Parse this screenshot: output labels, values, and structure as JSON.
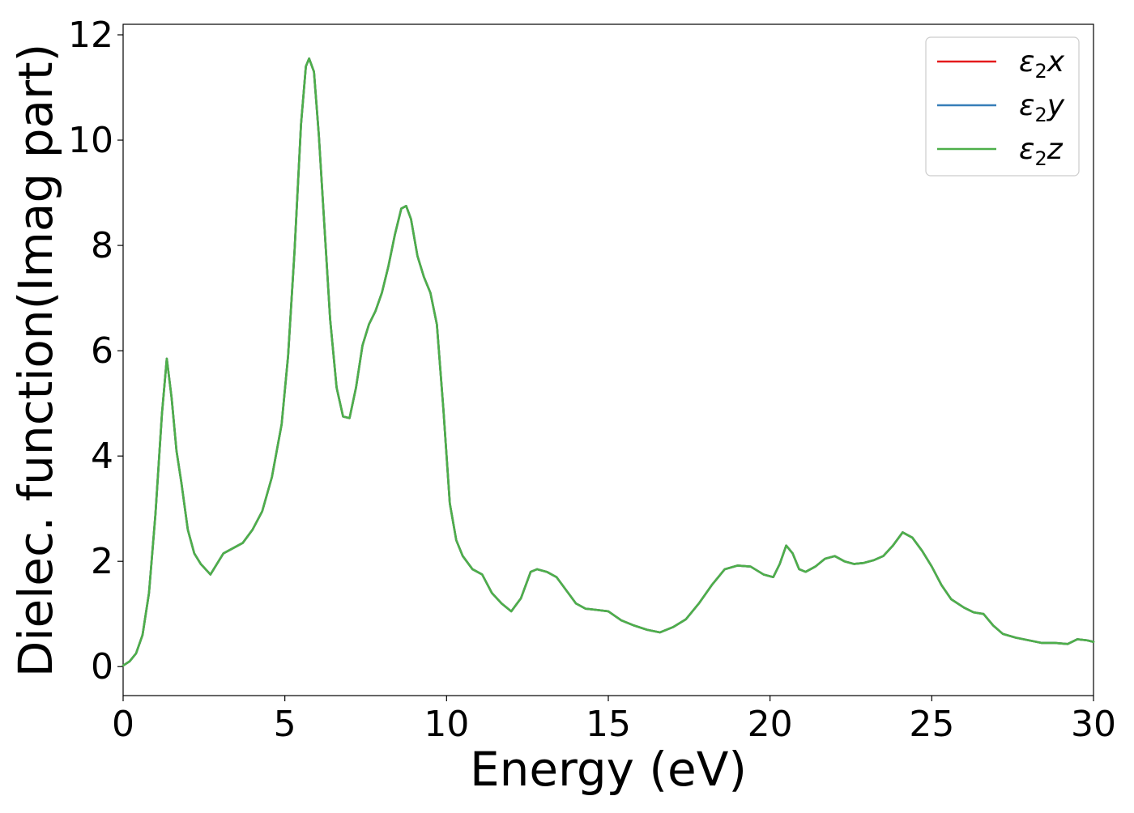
{
  "chart_data": {
    "type": "line",
    "title": "",
    "xlabel": "Energy (eV)",
    "ylabel": "Dielec. function(Imag part)",
    "xlim": [
      0,
      30
    ],
    "ylim": [
      -0.55,
      12.2
    ],
    "xticks": [
      0,
      5,
      10,
      15,
      20,
      25,
      30
    ],
    "yticks": [
      0,
      2,
      4,
      6,
      8,
      10,
      12
    ],
    "grid": false,
    "legend_position": "top-right",
    "x": [
      0,
      0.2,
      0.4,
      0.6,
      0.8,
      1.0,
      1.2,
      1.35,
      1.5,
      1.65,
      1.8,
      2.0,
      2.2,
      2.4,
      2.7,
      2.9,
      3.1,
      3.4,
      3.7,
      4.0,
      4.3,
      4.6,
      4.9,
      5.1,
      5.3,
      5.5,
      5.65,
      5.75,
      5.9,
      6.05,
      6.2,
      6.4,
      6.6,
      6.8,
      7.0,
      7.2,
      7.4,
      7.6,
      7.8,
      8.0,
      8.2,
      8.4,
      8.6,
      8.75,
      8.9,
      9.1,
      9.3,
      9.5,
      9.7,
      9.9,
      10.1,
      10.3,
      10.5,
      10.8,
      11.1,
      11.4,
      11.7,
      12.0,
      12.3,
      12.6,
      12.8,
      13.1,
      13.4,
      13.7,
      14.0,
      14.3,
      14.6,
      15.0,
      15.4,
      15.8,
      16.2,
      16.6,
      17.0,
      17.4,
      17.8,
      18.2,
      18.6,
      19.0,
      19.4,
      19.8,
      20.1,
      20.3,
      20.5,
      20.7,
      20.9,
      21.1,
      21.4,
      21.7,
      22.0,
      22.3,
      22.6,
      22.9,
      23.2,
      23.5,
      23.8,
      24.1,
      24.4,
      24.7,
      25.0,
      25.3,
      25.6,
      26.0,
      26.3,
      26.6,
      26.9,
      27.2,
      27.6,
      28.0,
      28.4,
      28.8,
      29.2,
      29.5,
      29.8,
      30.0
    ],
    "series": [
      {
        "name": "ε₂x",
        "color": "#e41a1c",
        "y": [
          0.02,
          0.1,
          0.25,
          0.6,
          1.4,
          2.9,
          4.8,
          5.85,
          5.1,
          4.1,
          3.5,
          2.6,
          2.15,
          1.95,
          1.75,
          1.95,
          2.15,
          2.25,
          2.35,
          2.6,
          2.95,
          3.6,
          4.6,
          5.9,
          7.9,
          10.3,
          11.4,
          11.55,
          11.3,
          10.1,
          8.6,
          6.6,
          5.3,
          4.75,
          4.72,
          5.3,
          6.1,
          6.5,
          6.75,
          7.1,
          7.6,
          8.2,
          8.7,
          8.75,
          8.5,
          7.8,
          7.4,
          7.1,
          6.5,
          4.9,
          3.1,
          2.4,
          2.1,
          1.85,
          1.75,
          1.4,
          1.2,
          1.05,
          1.3,
          1.8,
          1.85,
          1.8,
          1.7,
          1.45,
          1.2,
          1.1,
          1.08,
          1.05,
          0.88,
          0.78,
          0.7,
          0.65,
          0.75,
          0.9,
          1.2,
          1.55,
          1.85,
          1.92,
          1.9,
          1.75,
          1.7,
          1.95,
          2.3,
          2.15,
          1.85,
          1.8,
          1.9,
          2.05,
          2.1,
          2.0,
          1.95,
          1.97,
          2.02,
          2.1,
          2.3,
          2.55,
          2.45,
          2.2,
          1.9,
          1.55,
          1.28,
          1.12,
          1.03,
          1.0,
          0.78,
          0.62,
          0.55,
          0.5,
          0.45,
          0.45,
          0.43,
          0.52,
          0.5,
          0.47
        ]
      },
      {
        "name": "ε₂y",
        "color": "#377eb8",
        "y": [
          0.02,
          0.1,
          0.25,
          0.6,
          1.4,
          2.9,
          4.8,
          5.85,
          5.1,
          4.1,
          3.5,
          2.6,
          2.15,
          1.95,
          1.75,
          1.95,
          2.15,
          2.25,
          2.35,
          2.6,
          2.95,
          3.6,
          4.6,
          5.9,
          7.9,
          10.3,
          11.4,
          11.55,
          11.3,
          10.1,
          8.6,
          6.6,
          5.3,
          4.75,
          4.72,
          5.3,
          6.1,
          6.5,
          6.75,
          7.1,
          7.6,
          8.2,
          8.7,
          8.75,
          8.5,
          7.8,
          7.4,
          7.1,
          6.5,
          4.9,
          3.1,
          2.4,
          2.1,
          1.85,
          1.75,
          1.4,
          1.2,
          1.05,
          1.3,
          1.8,
          1.85,
          1.8,
          1.7,
          1.45,
          1.2,
          1.1,
          1.08,
          1.05,
          0.88,
          0.78,
          0.7,
          0.65,
          0.75,
          0.9,
          1.2,
          1.55,
          1.85,
          1.92,
          1.9,
          1.75,
          1.7,
          1.95,
          2.3,
          2.15,
          1.85,
          1.8,
          1.9,
          2.05,
          2.1,
          2.0,
          1.95,
          1.97,
          2.02,
          2.1,
          2.3,
          2.55,
          2.45,
          2.2,
          1.9,
          1.55,
          1.28,
          1.12,
          1.03,
          1.0,
          0.78,
          0.62,
          0.55,
          0.5,
          0.45,
          0.45,
          0.43,
          0.52,
          0.5,
          0.47
        ]
      },
      {
        "name": "ε₂z",
        "color": "#4daf4a",
        "y": [
          0.02,
          0.1,
          0.25,
          0.6,
          1.4,
          2.9,
          4.8,
          5.85,
          5.1,
          4.1,
          3.5,
          2.6,
          2.15,
          1.95,
          1.75,
          1.95,
          2.15,
          2.25,
          2.35,
          2.6,
          2.95,
          3.6,
          4.6,
          5.9,
          7.9,
          10.3,
          11.4,
          11.55,
          11.3,
          10.1,
          8.6,
          6.6,
          5.3,
          4.75,
          4.72,
          5.3,
          6.1,
          6.5,
          6.75,
          7.1,
          7.6,
          8.2,
          8.7,
          8.75,
          8.5,
          7.8,
          7.4,
          7.1,
          6.5,
          4.9,
          3.1,
          2.4,
          2.1,
          1.85,
          1.75,
          1.4,
          1.2,
          1.05,
          1.3,
          1.8,
          1.85,
          1.8,
          1.7,
          1.45,
          1.2,
          1.1,
          1.08,
          1.05,
          0.88,
          0.78,
          0.7,
          0.65,
          0.75,
          0.9,
          1.2,
          1.55,
          1.85,
          1.92,
          1.9,
          1.75,
          1.7,
          1.95,
          2.3,
          2.15,
          1.85,
          1.8,
          1.9,
          2.05,
          2.1,
          2.0,
          1.95,
          1.97,
          2.02,
          2.1,
          2.3,
          2.55,
          2.45,
          2.2,
          1.9,
          1.55,
          1.28,
          1.12,
          1.03,
          1.0,
          0.78,
          0.62,
          0.55,
          0.5,
          0.45,
          0.45,
          0.43,
          0.52,
          0.5,
          0.47
        ]
      }
    ],
    "legend": [
      {
        "symbol": "ε",
        "subscript": "2",
        "suffix": "x"
      },
      {
        "symbol": "ε",
        "subscript": "2",
        "suffix": "y"
      },
      {
        "symbol": "ε",
        "subscript": "2",
        "suffix": "z"
      }
    ]
  }
}
